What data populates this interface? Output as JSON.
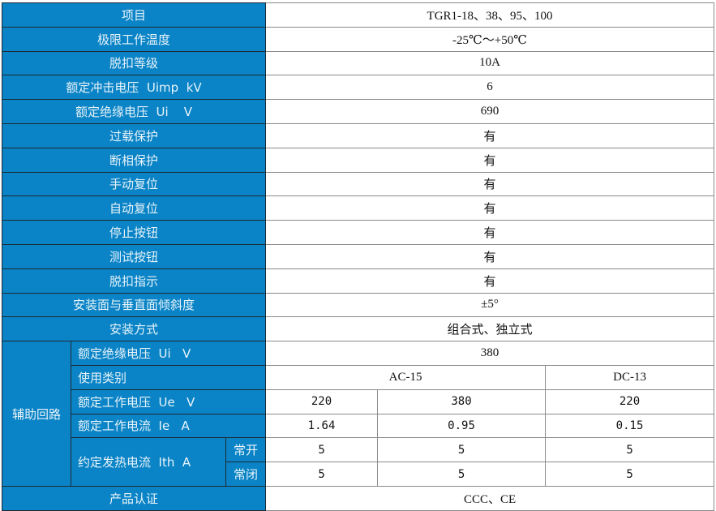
{
  "header": {
    "label": "项目",
    "value": "TGR1-18、38、95、100"
  },
  "rows": [
    {
      "label": "极限工作温度",
      "value": "-25℃～+50℃"
    },
    {
      "label": "脱扣等级",
      "value": "10A"
    },
    {
      "label": "额定冲击电压  Uimp  kV",
      "value": "6"
    },
    {
      "label": "额定绝缘电压  Ui    V",
      "value": "690"
    },
    {
      "label": "过载保护",
      "value": "有"
    },
    {
      "label": "断相保护",
      "value": "有"
    },
    {
      "label": "手动复位",
      "value": "有"
    },
    {
      "label": "自动复位",
      "value": "有"
    },
    {
      "label": "停止按钮",
      "value": "有"
    },
    {
      "label": "测试按钮",
      "value": "有"
    },
    {
      "label": "脱扣指示",
      "value": "有"
    },
    {
      "label": "安装面与垂直面倾斜度",
      "value": "±5°"
    },
    {
      "label": "安装方式",
      "value": "组合式、独立式"
    }
  ],
  "aux": {
    "group_label": "辅助回路",
    "insulation": {
      "label": "额定绝缘电压  Ui   V",
      "value": "380"
    },
    "category": {
      "label": "使用类别",
      "ac": "AC-15",
      "dc": "DC-13"
    },
    "voltage": {
      "label": "额定工作电压  Ue   V",
      "values": [
        "220",
        "380",
        "220"
      ]
    },
    "current": {
      "label": "额定工作电流  Ie   A",
      "values": [
        "1.64",
        "0.95",
        "0.15"
      ]
    },
    "thermal": {
      "label": "约定发热电流  Ith  A",
      "no": {
        "label": "常开",
        "values": [
          "5",
          "5",
          "5"
        ]
      },
      "nc": {
        "label": "常闭",
        "values": [
          "5",
          "5",
          "5"
        ]
      }
    }
  },
  "cert": {
    "label": "产品认证",
    "value": "CCC、CE"
  },
  "colors": {
    "header_bg": "#0a84c6",
    "header_text": "#e8f3fa"
  }
}
